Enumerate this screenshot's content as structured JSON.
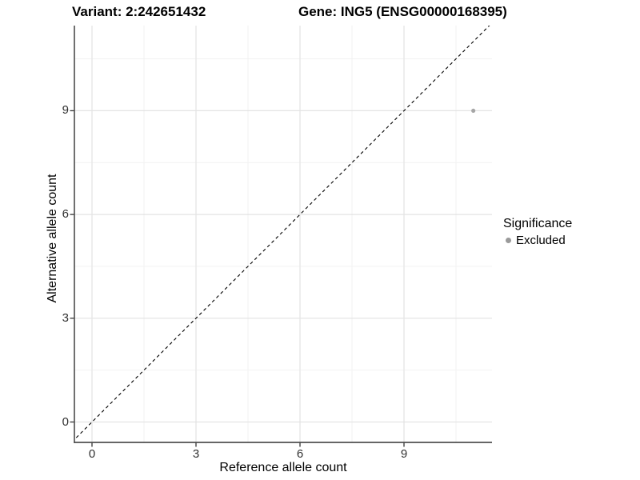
{
  "title": {
    "variant": "Variant: 2:242651432",
    "gene": "Gene: ING5 (ENSG00000168395)"
  },
  "axes": {
    "x": {
      "label": "Reference allele count"
    },
    "y": {
      "label": "Alternative allele count"
    }
  },
  "legend": {
    "title": "Significance",
    "items": [
      {
        "label": "Excluded",
        "color": "#9a9a9a"
      }
    ]
  },
  "chart_data": {
    "type": "scatter",
    "title": "Variant: 2:242651432   Gene: ING5 (ENSG00000168395)",
    "xlabel": "Reference allele count",
    "ylabel": "Alternative allele count",
    "xlim": [
      -0.55,
      11.55
    ],
    "ylim": [
      -0.55,
      11.55
    ],
    "x_ticks": [
      0,
      3,
      6,
      9
    ],
    "y_ticks": [
      0,
      3,
      6,
      9
    ],
    "x_minor_ticks": [
      1.5,
      4.5,
      7.5,
      10.5
    ],
    "y_minor_ticks": [
      1.5,
      4.5,
      7.5,
      10.5
    ],
    "grid": "major+minor",
    "legend_position": "right",
    "reference_line": {
      "equation": "y = x",
      "style": "dashed",
      "color": "#000000"
    },
    "series": [
      {
        "name": "Excluded",
        "color": "#a6a6a6",
        "points": [
          {
            "x": 11,
            "y": 9
          }
        ]
      }
    ]
  },
  "colors": {
    "background": "#ffffff",
    "grid_major": "#e3e3e3",
    "grid_minor": "#f1f1f1",
    "axis_line": "#333333",
    "tick_text": "#303030",
    "point": "#a6a6a6",
    "legend_dot": "#9a9a9a",
    "dashed_line": "#000000"
  }
}
